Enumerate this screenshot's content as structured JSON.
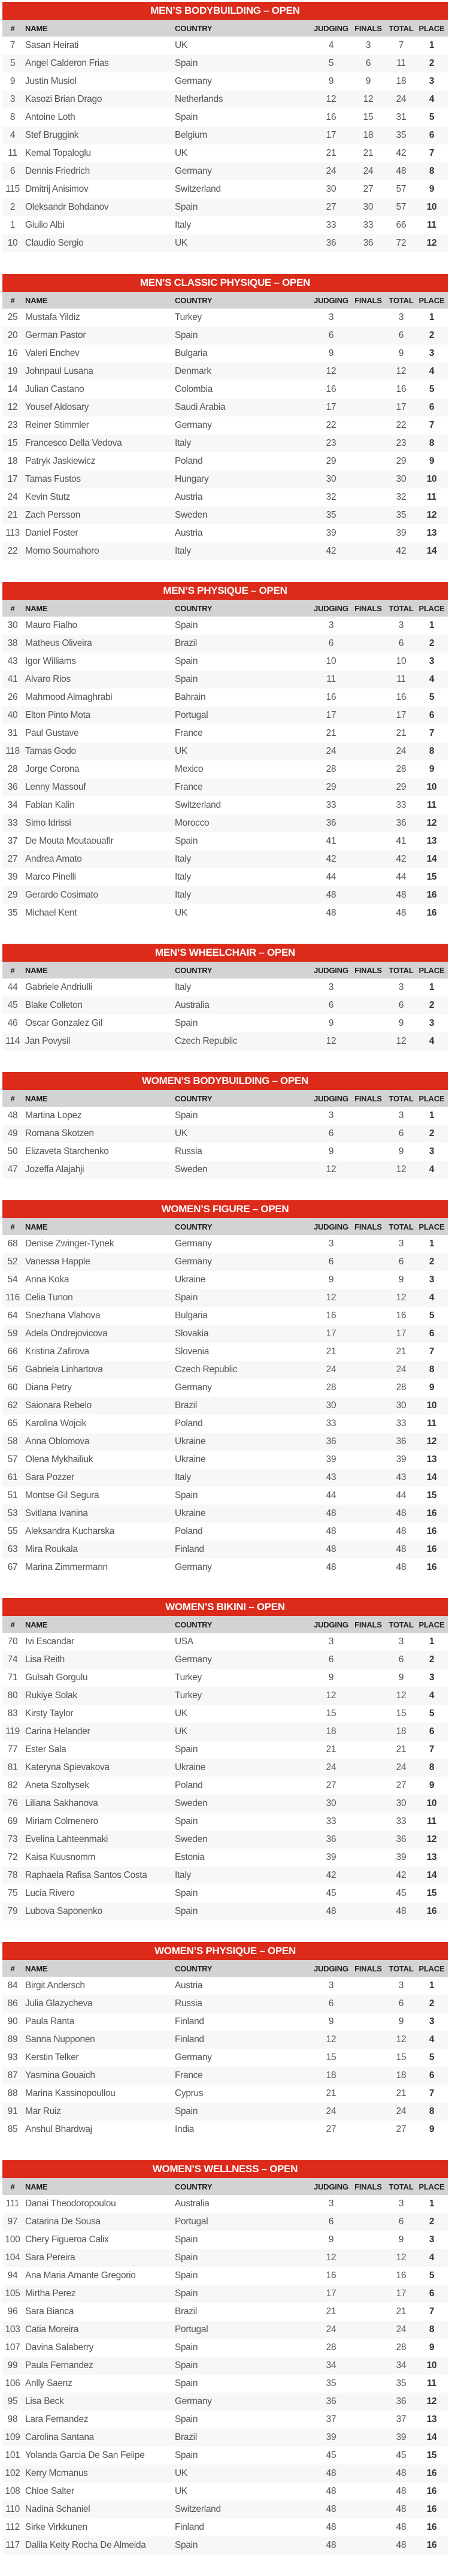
{
  "colors": {
    "header_red": "#dc2a1b",
    "column_header_gray": "#d3d3d3"
  },
  "columns": [
    "#",
    "NAME",
    "COUNTRY",
    "JUDGING",
    "FINALS",
    "TOTAL",
    "PLACE"
  ],
  "tables": [
    {
      "title": "MEN’S BODYBUILDING – OPEN",
      "rows": [
        [
          "7",
          "Sasan Heirati",
          "UK",
          "4",
          "3",
          "7",
          "1"
        ],
        [
          "5",
          "Angel Calderon Frias",
          "Spain",
          "5",
          "6",
          "11",
          "2"
        ],
        [
          "9",
          "Justin Musiol",
          "Germany",
          "9",
          "9",
          "18",
          "3"
        ],
        [
          "3",
          "Kasozi Brian Drago",
          "Netherlands",
          "12",
          "12",
          "24",
          "4"
        ],
        [
          "8",
          "Antoine Loth",
          "Spain",
          "16",
          "15",
          "31",
          "5"
        ],
        [
          "4",
          "Stef Bruggink",
          "Belgium",
          "17",
          "18",
          "35",
          "6"
        ],
        [
          "11",
          "Kemal Topaloglu",
          "UK",
          "21",
          "21",
          "42",
          "7"
        ],
        [
          "6",
          "Dennis Friedrich",
          "Germany",
          "24",
          "24",
          "48",
          "8"
        ],
        [
          "115",
          "Dmitrij Anisimov",
          "Switzerland",
          "30",
          "27",
          "57",
          "9"
        ],
        [
          "2",
          "Oleksandr Bohdanov",
          "Spain",
          "27",
          "30",
          "57",
          "10"
        ],
        [
          "1",
          "Giulio Albi",
          "Italy",
          "33",
          "33",
          "66",
          "11"
        ],
        [
          "10",
          "Claudio Sergio",
          "UK",
          "36",
          "36",
          "72",
          "12"
        ]
      ]
    },
    {
      "title": "MEN’S CLASSIC PHYSIQUE – OPEN",
      "rows": [
        [
          "25",
          "Mustafa Yildiz",
          "Turkey",
          "3",
          "",
          "3",
          "1"
        ],
        [
          "20",
          "German Pastor",
          "Spain",
          "6",
          "",
          "6",
          "2"
        ],
        [
          "16",
          "Valeri Enchev",
          "Bulgaria",
          "9",
          "",
          "9",
          "3"
        ],
        [
          "19",
          "Johnpaul Lusana",
          "Denmark",
          "12",
          "",
          "12",
          "4"
        ],
        [
          "14",
          "Julian Castano",
          "Colombia",
          "16",
          "",
          "16",
          "5"
        ],
        [
          "12",
          "Yousef Aldosary",
          "Saudi Arabia",
          "17",
          "",
          "17",
          "6"
        ],
        [
          "23",
          "Reiner Stimmler",
          "Germany",
          "22",
          "",
          "22",
          "7"
        ],
        [
          "15",
          "Francesco Della Vedova",
          "Italy",
          "23",
          "",
          "23",
          "8"
        ],
        [
          "18",
          "Patryk Jaskiewicz",
          "Poland",
          "29",
          "",
          "29",
          "9"
        ],
        [
          "17",
          "Tamas Fustos",
          "Hungary",
          "30",
          "",
          "30",
          "10"
        ],
        [
          "24",
          "Kevin Stutz",
          "Austria",
          "32",
          "",
          "32",
          "11"
        ],
        [
          "21",
          "Zach Persson",
          "Sweden",
          "35",
          "",
          "35",
          "12"
        ],
        [
          "113",
          "Daniel Foster",
          "Austria",
          "39",
          "",
          "39",
          "13"
        ],
        [
          "22",
          "Momo Soumahoro",
          "Italy",
          "42",
          "",
          "42",
          "14"
        ]
      ]
    },
    {
      "title": "MEN’S PHYSIQUE – OPEN",
      "rows": [
        [
          "30",
          "Mauro Fialho",
          "Spain",
          "3",
          "",
          "3",
          "1"
        ],
        [
          "38",
          "Matheus Oliveira",
          "Brazil",
          "6",
          "",
          "6",
          "2"
        ],
        [
          "43",
          "Igor Williams",
          "Spain",
          "10",
          "",
          "10",
          "3"
        ],
        [
          "41",
          "Alvaro Rios",
          "Spain",
          "11",
          "",
          "11",
          "4"
        ],
        [
          "26",
          "Mahmood Almaghrabi",
          "Bahrain",
          "16",
          "",
          "16",
          "5"
        ],
        [
          "40",
          "Elton Pinto Mota",
          "Portugal",
          "17",
          "",
          "17",
          "6"
        ],
        [
          "31",
          "Paul Gustave",
          "France",
          "21",
          "",
          "21",
          "7"
        ],
        [
          "118",
          "Tamas Godo",
          "UK",
          "24",
          "",
          "24",
          "8"
        ],
        [
          "28",
          "Jorge Corona",
          "Mexico",
          "28",
          "",
          "28",
          "9"
        ],
        [
          "36",
          "Lenny Massouf",
          "France",
          "29",
          "",
          "29",
          "10"
        ],
        [
          "34",
          "Fabian Kalin",
          "Switzerland",
          "33",
          "",
          "33",
          "11"
        ],
        [
          "33",
          "Simo Idrissi",
          "Morocco",
          "36",
          "",
          "36",
          "12"
        ],
        [
          "37",
          "De Mouta Moutaouafir",
          "Spain",
          "41",
          "",
          "41",
          "13"
        ],
        [
          "27",
          "Andrea Amato",
          "Italy",
          "42",
          "",
          "42",
          "14"
        ],
        [
          "39",
          "Marco Pinelli",
          "Italy",
          "44",
          "",
          "44",
          "15"
        ],
        [
          "29",
          "Gerardo Cosimato",
          "Italy",
          "48",
          "",
          "48",
          "16"
        ],
        [
          "35",
          "Michael Kent",
          "UK",
          "48",
          "",
          "48",
          "16"
        ]
      ]
    },
    {
      "title": "MEN’S WHEELCHAIR – OPEN",
      "rows": [
        [
          "44",
          "Gabriele Andriulli",
          "Italy",
          "3",
          "",
          "3",
          "1"
        ],
        [
          "45",
          "Blake Colleton",
          "Australia",
          "6",
          "",
          "6",
          "2"
        ],
        [
          "46",
          "Oscar Gonzalez Gil",
          "Spain",
          "9",
          "",
          "9",
          "3"
        ],
        [
          "114",
          "Jan Povysil",
          "Czech Republic",
          "12",
          "",
          "12",
          "4"
        ]
      ]
    },
    {
      "title": "WOMEN’S BODYBUILDING – OPEN",
      "rows": [
        [
          "48",
          "Martina Lopez",
          "Spain",
          "3",
          "",
          "3",
          "1"
        ],
        [
          "49",
          "Romana Skotzen",
          "UK",
          "6",
          "",
          "6",
          "2"
        ],
        [
          "50",
          "Elizaveta Starchenko",
          "Russia",
          "9",
          "",
          "9",
          "3"
        ],
        [
          "47",
          "Jozeffa Alajahji",
          "Sweden",
          "12",
          "",
          "12",
          "4"
        ]
      ]
    },
    {
      "title": "WOMEN’S FIGURE – OPEN",
      "rows": [
        [
          "68",
          "Denise Zwinger-Tynek",
          "Germany",
          "3",
          "",
          "3",
          "1"
        ],
        [
          "52",
          "Vanessa Happle",
          "Germany",
          "6",
          "",
          "6",
          "2"
        ],
        [
          "54",
          "Anna Koka",
          "Ukraine",
          "9",
          "",
          "9",
          "3"
        ],
        [
          "116",
          "Celia Tunon",
          "Spain",
          "12",
          "",
          "12",
          "4"
        ],
        [
          "64",
          "Snezhana Vlahova",
          "Bulgaria",
          "16",
          "",
          "16",
          "5"
        ],
        [
          "59",
          "Adela Ondrejovicova",
          "Slovakia",
          "17",
          "",
          "17",
          "6"
        ],
        [
          "66",
          "Kristina Zafirova",
          "Slovenia",
          "21",
          "",
          "21",
          "7"
        ],
        [
          "56",
          "Gabriela Linhartova",
          "Czech Republic",
          "24",
          "",
          "24",
          "8"
        ],
        [
          "60",
          "Diana Petry",
          "Germany",
          "28",
          "",
          "28",
          "9"
        ],
        [
          "62",
          "Saionara Rebelo",
          "Brazil",
          "30",
          "",
          "30",
          "10"
        ],
        [
          "65",
          "Karolina Wojcik",
          "Poland",
          "33",
          "",
          "33",
          "11"
        ],
        [
          "58",
          "Anna Oblomova",
          "Ukraine",
          "36",
          "",
          "36",
          "12"
        ],
        [
          "57",
          "Olena Mykhailiuk",
          "Ukraine",
          "39",
          "",
          "39",
          "13"
        ],
        [
          "61",
          "Sara Pozzer",
          "Italy",
          "43",
          "",
          "43",
          "14"
        ],
        [
          "51",
          "Montse Gil Segura",
          "Spain",
          "44",
          "",
          "44",
          "15"
        ],
        [
          "53",
          "Svitlana Ivanina",
          "Ukraine",
          "48",
          "",
          "48",
          "16"
        ],
        [
          "55",
          "Aleksandra Kucharska",
          "Poland",
          "48",
          "",
          "48",
          "16"
        ],
        [
          "63",
          "Mira Roukala",
          "Finland",
          "48",
          "",
          "48",
          "16"
        ],
        [
          "67",
          "Marina Zimmermann",
          "Germany",
          "48",
          "",
          "48",
          "16"
        ]
      ]
    },
    {
      "title": "WOMEN’S BIKINI – OPEN",
      "rows": [
        [
          "70",
          "Ivi Escandar",
          "USA",
          "3",
          "",
          "3",
          "1"
        ],
        [
          "74",
          "Lisa Reith",
          "Germany",
          "6",
          "",
          "6",
          "2"
        ],
        [
          "71",
          "Gulsah Gorgulu",
          "Turkey",
          "9",
          "",
          "9",
          "3"
        ],
        [
          "80",
          "Rukiye Solak",
          "Turkey",
          "12",
          "",
          "12",
          "4"
        ],
        [
          "83",
          "Kirsty Taylor",
          "UK",
          "15",
          "",
          "15",
          "5"
        ],
        [
          "119",
          "Carina Helander",
          "UK",
          "18",
          "",
          "18",
          "6"
        ],
        [
          "77",
          "Ester Sala",
          "Spain",
          "21",
          "",
          "21",
          "7"
        ],
        [
          "81",
          "Kateryna Spievakova",
          "Ukraine",
          "24",
          "",
          "24",
          "8"
        ],
        [
          "82",
          "Aneta Szoltysek",
          "Poland",
          "27",
          "",
          "27",
          "9"
        ],
        [
          "76",
          "Liliana Sakhanova",
          "Sweden",
          "30",
          "",
          "30",
          "10"
        ],
        [
          "69",
          "Miriam Colmenero",
          "Spain",
          "33",
          "",
          "33",
          "11"
        ],
        [
          "73",
          "Evelina Lahteenmaki",
          "Sweden",
          "36",
          "",
          "36",
          "12"
        ],
        [
          "72",
          "Kaisa Kuusnomm",
          "Estonia",
          "39",
          "",
          "39",
          "13"
        ],
        [
          "78",
          "Raphaela Rafisa Santos Costa",
          "Italy",
          "42",
          "",
          "42",
          "14"
        ],
        [
          "75",
          "Lucia Rivero",
          "Spain",
          "45",
          "",
          "45",
          "15"
        ],
        [
          "79",
          "Lubova Saponenko",
          "Spain",
          "48",
          "",
          "48",
          "16"
        ]
      ]
    },
    {
      "title": "WOMEN’S PHYSIQUE – OPEN",
      "rows": [
        [
          "84",
          "Birgit Andersch",
          "Austria",
          "3",
          "",
          "3",
          "1"
        ],
        [
          "86",
          "Julia Glazycheva",
          "Russia",
          "6",
          "",
          "6",
          "2"
        ],
        [
          "90",
          "Paula Ranta",
          "Finland",
          "9",
          "",
          "9",
          "3"
        ],
        [
          "89",
          "Sanna Nupponen",
          "Finland",
          "12",
          "",
          "12",
          "4"
        ],
        [
          "93",
          "Kerstin Telker",
          "Germany",
          "15",
          "",
          "15",
          "5"
        ],
        [
          "87",
          "Yasmina Gouaich",
          "France",
          "18",
          "",
          "18",
          "6"
        ],
        [
          "88",
          "Marina Kassinopoullou",
          "Cyprus",
          "21",
          "",
          "21",
          "7"
        ],
        [
          "91",
          "Mar Ruiz",
          "Spain",
          "24",
          "",
          "24",
          "8"
        ],
        [
          "85",
          "Anshul Bhardwaj",
          "India",
          "27",
          "",
          "27",
          "9"
        ]
      ]
    },
    {
      "title": "WOMEN’S WELLNESS – OPEN",
      "rows": [
        [
          "111",
          "Danai Theodoropoulou",
          "Australia",
          "3",
          "",
          "3",
          "1"
        ],
        [
          "97",
          "Catarina De Sousa",
          "Portugal",
          "6",
          "",
          "6",
          "2"
        ],
        [
          "100",
          "Chery Figueroa Calix",
          "Spain",
          "9",
          "",
          "9",
          "3"
        ],
        [
          "104",
          "Sara Pereira",
          "Spain",
          "12",
          "",
          "12",
          "4"
        ],
        [
          "94",
          "Ana Maria Amante Gregorio",
          "Spain",
          "16",
          "",
          "16",
          "5"
        ],
        [
          "105",
          "Mirtha Perez",
          "Spain",
          "17",
          "",
          "17",
          "6"
        ],
        [
          "96",
          "Sara Bianca",
          "Brazil",
          "21",
          "",
          "21",
          "7"
        ],
        [
          "103",
          "Catia Moreira",
          "Portugal",
          "24",
          "",
          "24",
          "8"
        ],
        [
          "107",
          "Davina Salaberry",
          "Spain",
          "28",
          "",
          "28",
          "9"
        ],
        [
          "99",
          "Paula Fernandez",
          "Spain",
          "34",
          "",
          "34",
          "10"
        ],
        [
          "106",
          "Anlly Saenz",
          "Spain",
          "35",
          "",
          "35",
          "11"
        ],
        [
          "95",
          "Lisa Beck",
          "Germany",
          "36",
          "",
          "36",
          "12"
        ],
        [
          "98",
          "Lara Fernandez",
          "Spain",
          "37",
          "",
          "37",
          "13"
        ],
        [
          "109",
          "Carolina Santana",
          "Brazil",
          "39",
          "",
          "39",
          "14"
        ],
        [
          "101",
          "Yolanda Garcia De San Felipe",
          "Spain",
          "45",
          "",
          "45",
          "15"
        ],
        [
          "102",
          "Kerry Mcmanus",
          "UK",
          "48",
          "",
          "48",
          "16"
        ],
        [
          "108",
          "Chloe Salter",
          "UK",
          "48",
          "",
          "48",
          "16"
        ],
        [
          "110",
          "Nadina Schaniel",
          "Switzerland",
          "48",
          "",
          "48",
          "16"
        ],
        [
          "112",
          "Sirke Virkkunen",
          "Finland",
          "48",
          "",
          "48",
          "16"
        ],
        [
          "117",
          "Dalila Keity Rocha De Almeida",
          "Spain",
          "48",
          "",
          "48",
          "16"
        ]
      ]
    }
  ]
}
